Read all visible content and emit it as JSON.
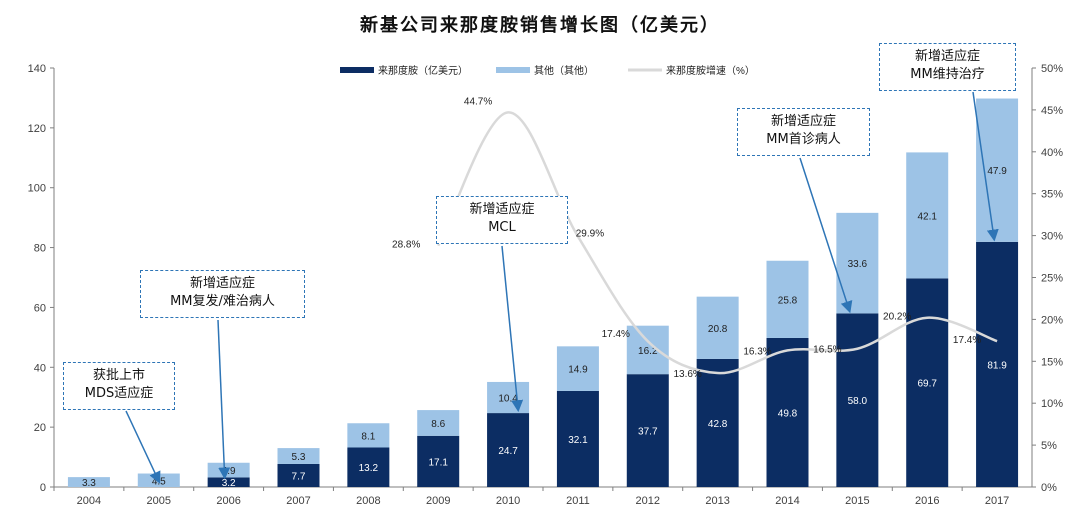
{
  "chart_data": {
    "type": "bar",
    "title": "新基公司来那度胺销售增长图（亿美元）",
    "categories": [
      "2004",
      "2005",
      "2006",
      "2007",
      "2008",
      "2009",
      "2010",
      "2011",
      "2012",
      "2013",
      "2014",
      "2015",
      "2016",
      "2017"
    ],
    "series": [
      {
        "name": "来那度胺（亿美元）",
        "type": "bar",
        "axis": "left",
        "color": "#0c2d63",
        "values": [
          0,
          0,
          3.2,
          7.7,
          13.2,
          17.1,
          24.7,
          32.1,
          37.7,
          42.8,
          49.8,
          58.0,
          69.7,
          81.9
        ],
        "labels": [
          "",
          "",
          "3.2",
          "7.7",
          "13.2",
          "17.1",
          "24.7",
          "32.1",
          "37.7",
          "42.8",
          "49.8",
          "58.0",
          "69.7",
          "81.9"
        ]
      },
      {
        "name": "其他（其他）",
        "type": "bar",
        "axis": "left",
        "color": "#9dc3e6",
        "values": [
          3.3,
          4.5,
          4.9,
          5.3,
          8.1,
          8.6,
          10.4,
          14.9,
          16.2,
          20.8,
          25.8,
          33.6,
          42.1,
          47.9
        ],
        "labels": [
          "3.3",
          "4.5",
          "4.9",
          "5.3",
          "8.1",
          "8.6",
          "10.4",
          "14.9",
          "16.2",
          "20.8",
          "25.8",
          "33.6",
          "42.1",
          "47.9"
        ]
      },
      {
        "name": "来那度胺增速（%）",
        "type": "line",
        "axis": "right",
        "color": "#d9d9d9",
        "points": [
          [
            "2009",
            28.8
          ],
          [
            "2010",
            44.7
          ],
          [
            "2011",
            29.9
          ],
          [
            "2012",
            17.4
          ],
          [
            "2013",
            13.6
          ],
          [
            "2014",
            16.3
          ],
          [
            "2015",
            16.5
          ],
          [
            "2016",
            20.2
          ],
          [
            "2017",
            17.4
          ]
        ],
        "labels": [
          "28.8%",
          "44.7%",
          "29.9%",
          "17.4%",
          "13.6%",
          "16.3%",
          "16.5%",
          "20.2%",
          "17.4%"
        ]
      }
    ],
    "ylim": [
      0,
      140
    ],
    "yticks": [
      "0",
      "20",
      "40",
      "60",
      "80",
      "100",
      "120",
      "140"
    ],
    "y2lim": [
      0,
      50
    ],
    "y2ticks": [
      "0%",
      "5%",
      "10%",
      "15%",
      "20%",
      "25%",
      "30%",
      "35%",
      "40%",
      "45%",
      "50%"
    ],
    "legend_position": "top-center",
    "annotations": [
      {
        "line1": "获批上市",
        "line2": "MDS适应症",
        "year": "2005"
      },
      {
        "line1": "新增适应症",
        "line2": "MM复发/难治病人",
        "year": "2006"
      },
      {
        "line1": "新增适应症",
        "line2": "MCL",
        "year": "2010"
      },
      {
        "line1": "新增适应症",
        "line2": "MM首诊病人",
        "year": "2015"
      },
      {
        "line1": "新增适应症",
        "line2": "MM维持治疗",
        "year": "2017"
      }
    ]
  }
}
